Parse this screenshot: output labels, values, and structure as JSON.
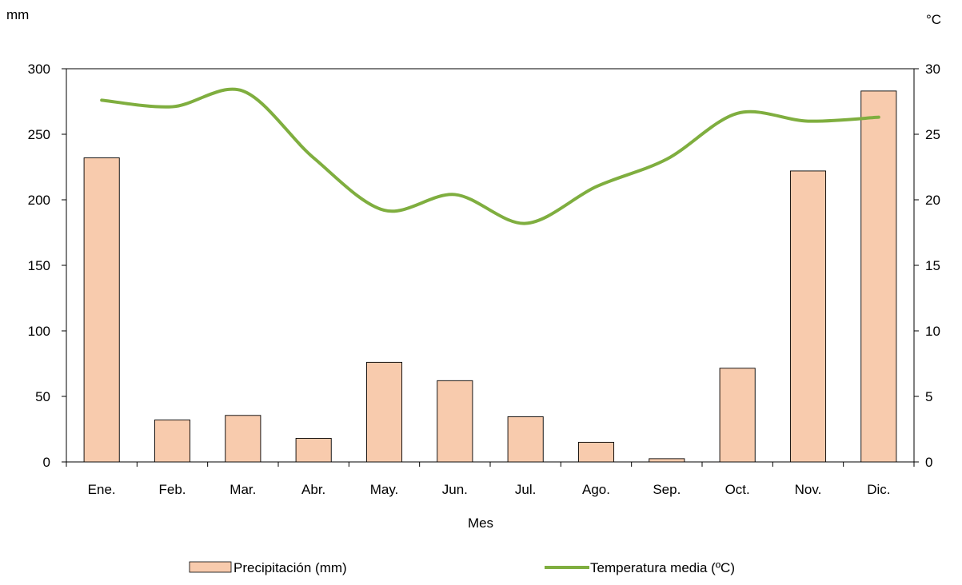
{
  "chart_data": {
    "type": "bar",
    "title": "",
    "xlabel": "Mes",
    "ylabel_left_unit": "mm",
    "ylabel_right_unit": "°C",
    "categories": [
      "Ene.",
      "Feb.",
      "Mar.",
      "Abr.",
      "May.",
      "Jun.",
      "Jul.",
      "Ago.",
      "Sep.",
      "Oct.",
      "Nov.",
      "Dic."
    ],
    "series": [
      {
        "name": "Precipitación (mm)",
        "type": "bar",
        "axis": "left",
        "color": "#F8CBAD",
        "values": [
          232,
          32,
          35.5,
          18,
          76,
          62,
          34.5,
          15,
          2.5,
          71.5,
          222,
          283
        ]
      },
      {
        "name": "Temperatura media (ºC)",
        "type": "line",
        "axis": "right",
        "color": "#7FAE3F",
        "values": [
          27.6,
          27.1,
          28.3,
          23.2,
          19.2,
          20.4,
          18.2,
          21,
          23.1,
          26.6,
          26,
          26.3
        ]
      }
    ],
    "y_left": {
      "min": 0,
      "max": 300,
      "ticks": [
        0,
        50,
        100,
        150,
        200,
        250,
        300
      ]
    },
    "y_right": {
      "min": 0,
      "max": 30,
      "ticks": [
        0,
        5,
        10,
        15,
        20,
        25,
        30
      ]
    },
    "grid": false,
    "legend_position": "bottom"
  }
}
